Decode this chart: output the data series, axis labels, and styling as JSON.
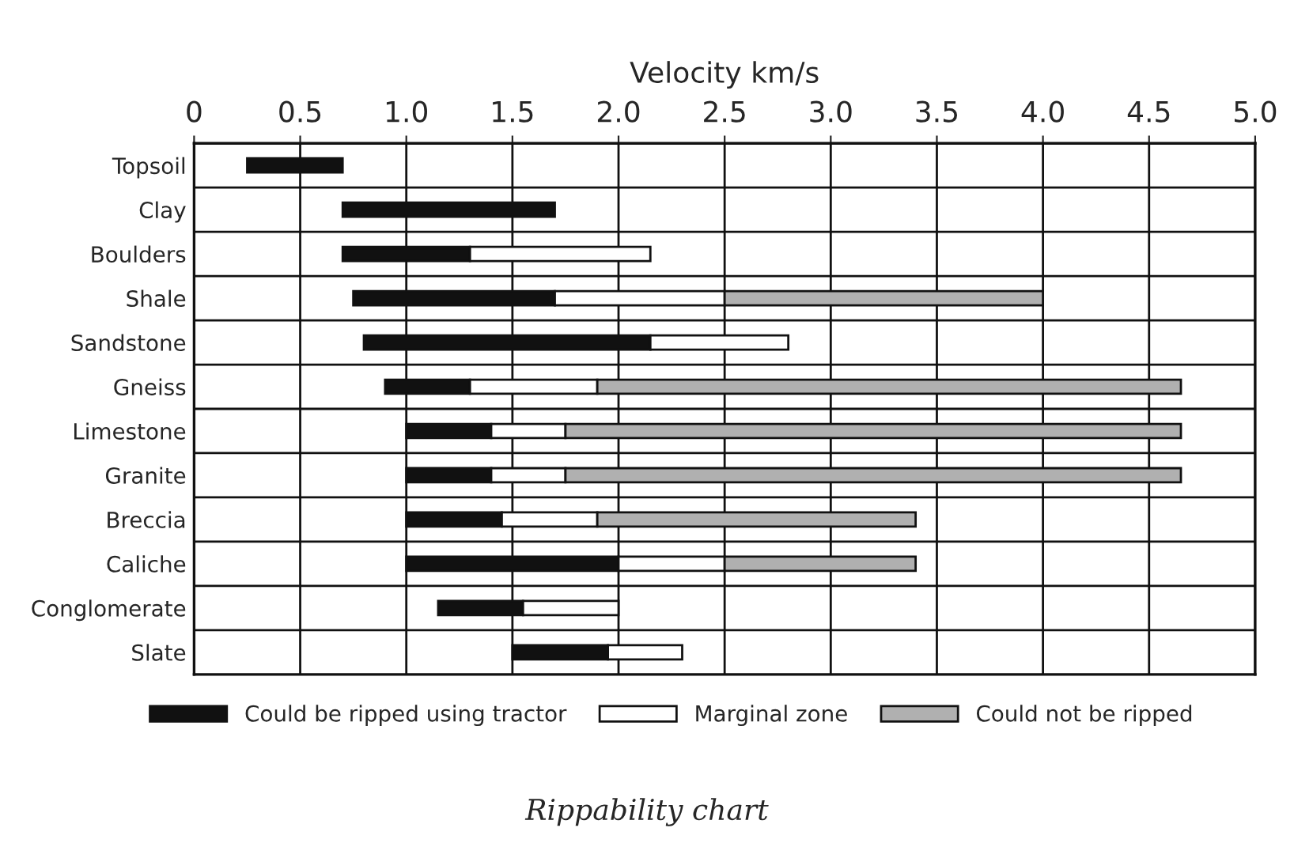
{
  "chart_data": {
    "type": "bar",
    "orientation": "horizontal",
    "title": "Rippability chart",
    "xlabel": "Velocity km/s",
    "categories": [
      "Topsoil",
      "Clay",
      "Boulders",
      "Shale",
      "Sandstone",
      "Gneiss",
      "Limestone",
      "Granite",
      "Breccia",
      "Caliche",
      "Conglomerate",
      "Slate"
    ],
    "series": [
      {
        "name": "Could be ripped using tractor",
        "color": "#111111",
        "base": [
          0.25,
          0.7,
          0.7,
          0.75,
          0.8,
          0.9,
          1.0,
          1.0,
          1.0,
          1.0,
          1.15,
          1.5
        ],
        "values": [
          0.45,
          1.0,
          0.6,
          0.95,
          1.35,
          0.4,
          0.4,
          0.4,
          0.45,
          1.0,
          0.4,
          0.45
        ]
      },
      {
        "name": "Marginal zone",
        "color": "#ffffff",
        "base": [
          null,
          null,
          1.3,
          1.7,
          2.15,
          1.3,
          1.4,
          1.4,
          1.45,
          2.0,
          1.55,
          1.95
        ],
        "values": [
          null,
          null,
          0.85,
          0.8,
          0.65,
          0.6,
          0.35,
          0.35,
          0.45,
          0.5,
          0.45,
          0.35
        ]
      },
      {
        "name": "Could not be ripped",
        "color": "#b0b0b0",
        "base": [
          null,
          null,
          null,
          2.5,
          null,
          1.9,
          1.75,
          1.75,
          1.9,
          2.5,
          null,
          null
        ],
        "values": [
          null,
          null,
          null,
          1.5,
          null,
          2.75,
          2.9,
          2.9,
          1.5,
          0.9,
          null,
          null
        ]
      }
    ],
    "xlim": [
      0,
      5
    ],
    "xticks": [
      0,
      0.5,
      {
        "value": 1,
        "label": "1.0"
      },
      1.5,
      {
        "value": 2,
        "label": "2.0"
      },
      2.5,
      {
        "value": 3,
        "label": "3.0"
      },
      3.5,
      {
        "value": 4,
        "label": "4.0"
      },
      4.5,
      {
        "value": 5,
        "label": "5.0"
      }
    ],
    "grid": true,
    "legend": "bottom"
  }
}
